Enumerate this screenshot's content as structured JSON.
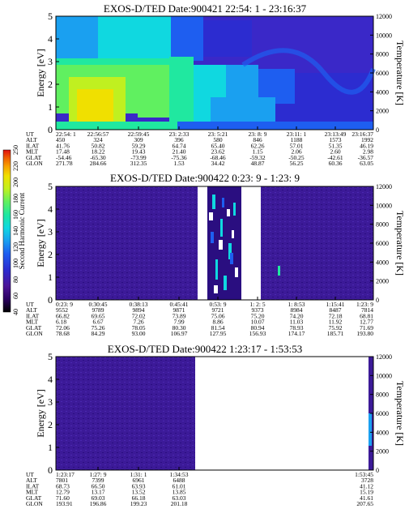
{
  "colors": {
    "colorbar": [
      "#000000",
      "#2a0060",
      "#4b1498",
      "#2c2cd0",
      "#1e5ef0",
      "#1aa0f0",
      "#10d8e0",
      "#20e8a0",
      "#60f060",
      "#c0f020",
      "#f0e000",
      "#f8a000",
      "#f06000",
      "#e01010"
    ]
  },
  "chart_data": [
    {
      "type": "heatmap",
      "title": "EXOS-D/TED   Date:900421  22:54: 1 - 23:16:37",
      "ylabel": "Energy [eV]",
      "y2label": "Temperature [K]",
      "ylim": [
        0,
        5
      ],
      "y2lim": [
        0,
        12000
      ],
      "yticks": [
        "0",
        "1",
        "2",
        "3",
        "4",
        "5"
      ],
      "y2ticks": [
        "0",
        "2000",
        "4000",
        "6000",
        "8000",
        "10000",
        "12000"
      ],
      "rowlabels": [
        "UT",
        "ALT",
        "ILAT",
        "MLT",
        "GLAT",
        "GLON"
      ],
      "columns": [
        [
          "22:54: 1",
          "450",
          "41.76",
          "17.48",
          "-54.46",
          "271.78"
        ],
        [
          "22:56:57",
          "324",
          "50.82",
          "18.22",
          "-65.30",
          "284.66"
        ],
        [
          "22:59:45",
          "309",
          "59.29",
          "19.43",
          "-73.99",
          "312.35"
        ],
        [
          "23: 2:33",
          "396",
          "64.74",
          "21.40",
          "-75.36",
          "1.53"
        ],
        [
          "23: 5:21",
          "580",
          "65.40",
          "23.62",
          "-68.46",
          "34.42"
        ],
        [
          "23: 8: 9",
          "846",
          "62.26",
          "1.15",
          "-59.32",
          "48.87"
        ],
        [
          "23:11: 1",
          "1188",
          "57.01",
          "2.06",
          "-50.25",
          "56.25"
        ],
        [
          "23:13:49",
          "1573",
          "51.35",
          "2.60",
          "-42.61",
          "60.36"
        ],
        [
          "23:16:37",
          "1992",
          "46.19",
          "2.98",
          "-36.57",
          "63.05"
        ]
      ]
    },
    {
      "type": "heatmap",
      "title": "EXOS-D/TED   Date:900422   0:23: 9 - 1:23: 9",
      "ylabel": "Energy [eV]",
      "y2label": "Temperature [K]",
      "ylim": [
        0,
        5
      ],
      "y2lim": [
        0,
        12000
      ],
      "yticks": [
        "0",
        "1",
        "2",
        "3",
        "4",
        "5"
      ],
      "y2ticks": [
        "0",
        "2000",
        "4000",
        "6000",
        "8000",
        "10000",
        "12000"
      ],
      "colorbar": {
        "label": "Second Harmonic Current",
        "ticks": [
          "40",
          "60",
          "80",
          "100",
          "120",
          "140",
          "160",
          "180",
          "200",
          "220",
          "250"
        ]
      },
      "rowlabels": [
        "UT",
        "ALT",
        "ILAT",
        "MLT",
        "GLAT",
        "GLON"
      ],
      "columns": [
        [
          "0:23: 9",
          "9552",
          "66.82",
          "6.18",
          "72.06",
          "78.68"
        ],
        [
          "0:30:45",
          "9789",
          "69.65",
          "6.67",
          "75.26",
          "84.29"
        ],
        [
          "0:38:13",
          "9894",
          "72.02",
          "7.26",
          "78.05",
          "93.00"
        ],
        [
          "0:45:41",
          "9871",
          "73.89",
          "7.99",
          "80.30",
          "106.97"
        ],
        [
          "0:53: 9",
          "9721",
          "75.06",
          "8.86",
          "81.54",
          "127.95"
        ],
        [
          "1: 2: 5",
          "9373",
          "75.20",
          "10.07",
          "80.94",
          "156.93"
        ],
        [
          "1: 8:53",
          "8984",
          "74.20",
          "11.03",
          "78.93",
          "174.17"
        ],
        [
          "1:15:41",
          "8487",
          "72.18",
          "11.92",
          "75.92",
          "185.71"
        ],
        [
          "1:23: 9",
          "7814",
          "68.81",
          "12.77",
          "71.69",
          "193.80"
        ]
      ]
    },
    {
      "type": "heatmap",
      "title": "EXOS-D/TED   Date:900422   1:23:17 - 1:53:53",
      "ylabel": "Energy [eV]",
      "y2label": "Temperature [K]",
      "ylim": [
        0,
        5
      ],
      "y2lim": [
        0,
        12000
      ],
      "yticks": [
        "0",
        "1",
        "2",
        "3",
        "4",
        "5"
      ],
      "y2ticks": [
        "0",
        "2000",
        "4000",
        "6000",
        "8000",
        "10000",
        "12000"
      ],
      "rowlabels": [
        "UT",
        "ALT",
        "ILAT",
        "MLT",
        "GLAT",
        "GLON"
      ],
      "columns": [
        [
          "1:23:17",
          "7801",
          "68.73",
          "12.79",
          "71.60",
          "193.91"
        ],
        [
          "1:27: 9",
          "7399",
          "66.50",
          "13.17",
          "69.03",
          "196.86"
        ],
        [
          "1:31: 1",
          "6961",
          "63.93",
          "13.52",
          "66.18",
          "199.23"
        ],
        [
          "1:34:53",
          "6488",
          "61.01",
          "13.85",
          "63.03",
          "201.18"
        ],
        [
          "1:53:45",
          "3728",
          "41.12",
          "15.19",
          "41.61",
          "207.65"
        ]
      ]
    }
  ]
}
